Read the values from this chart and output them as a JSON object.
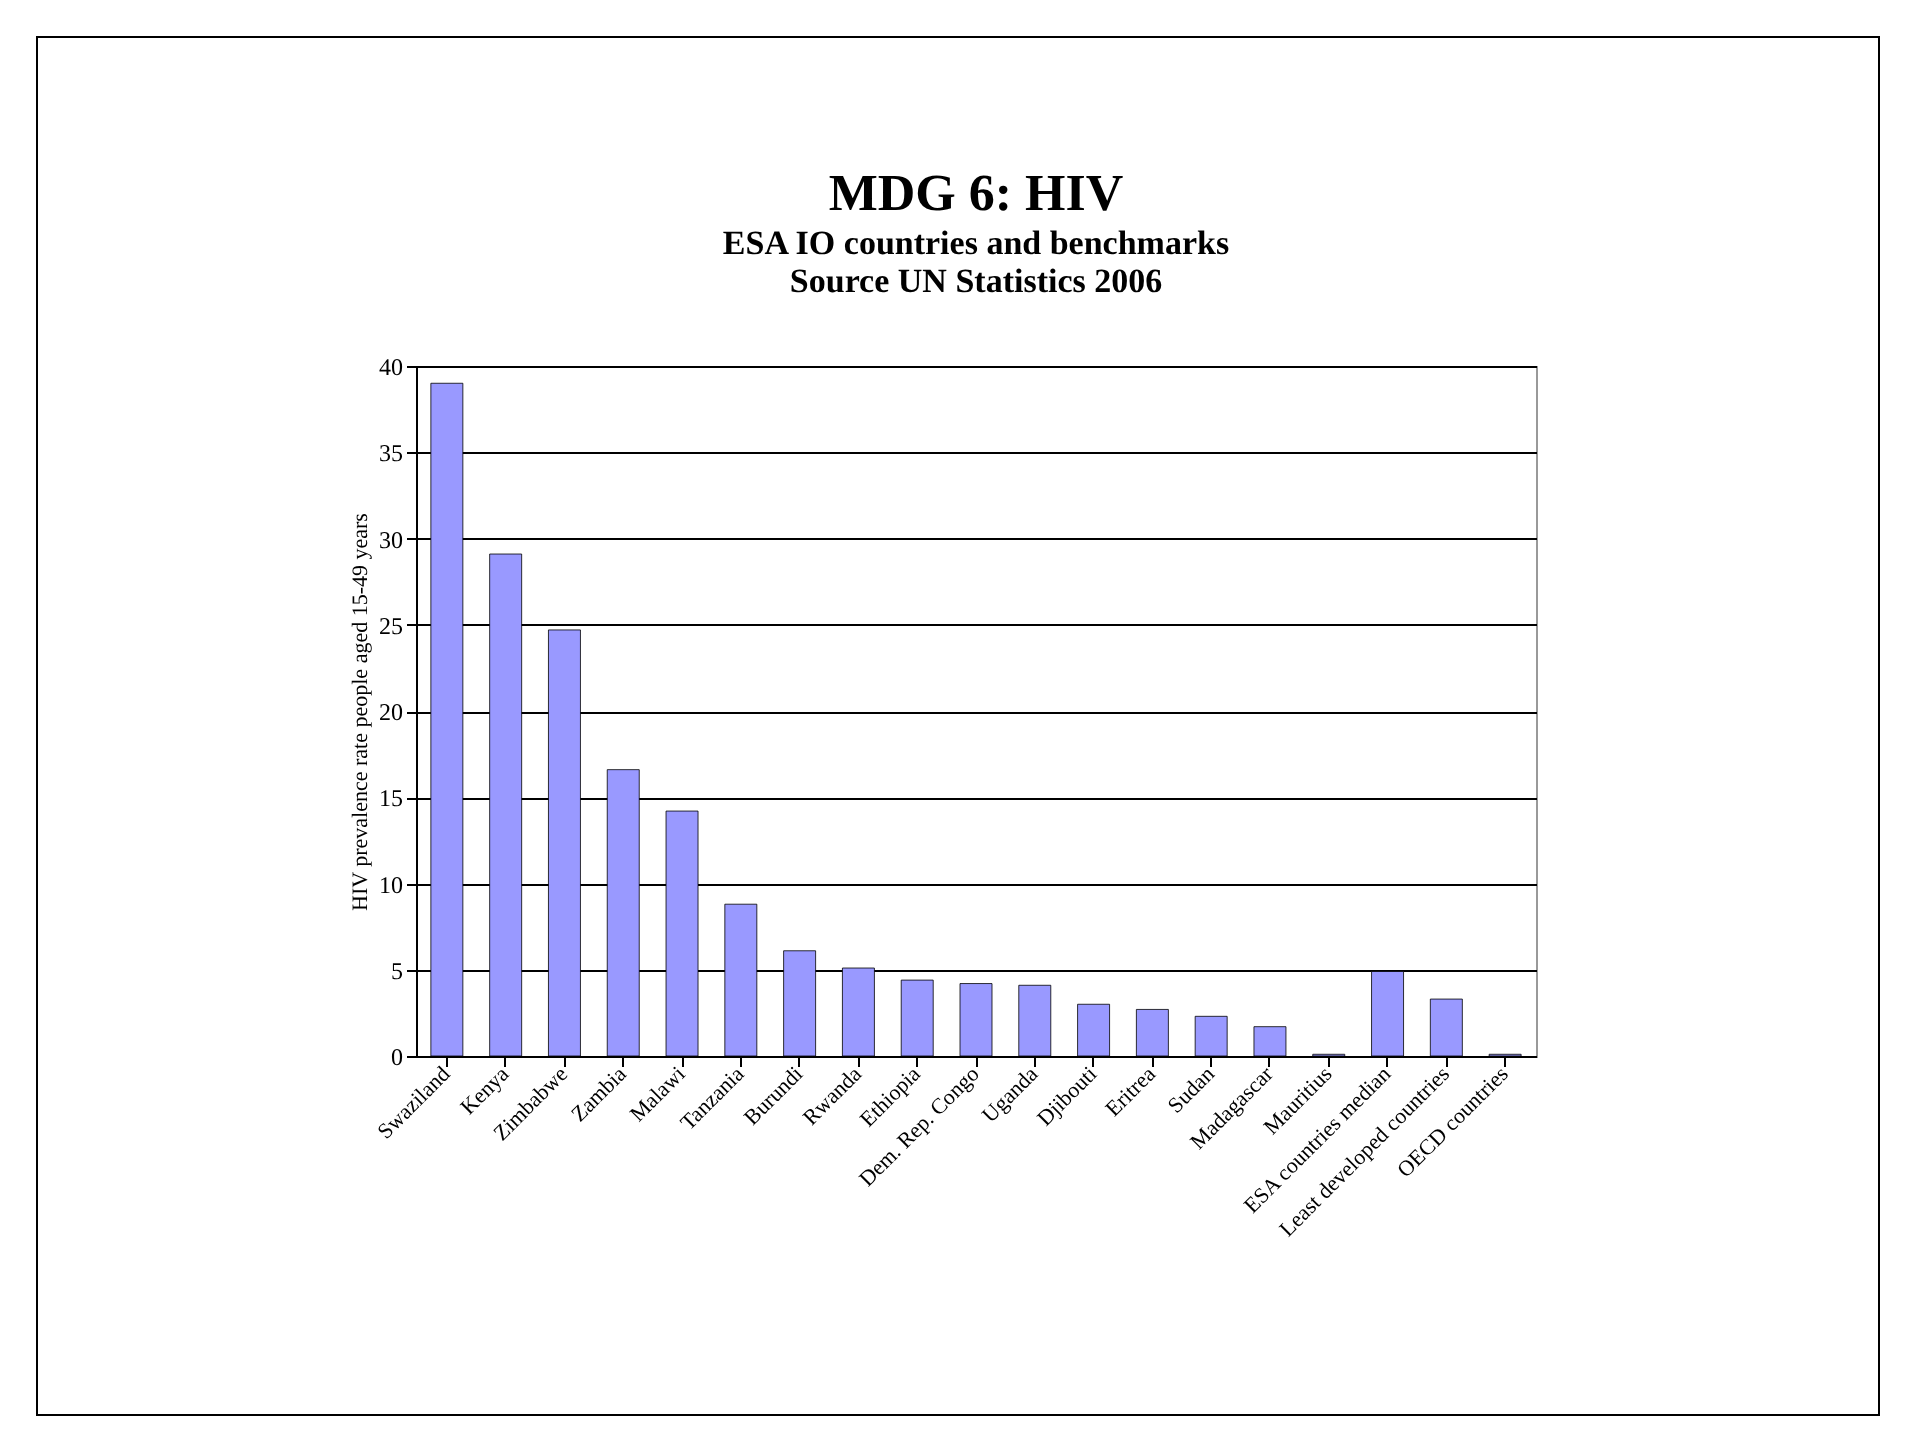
{
  "chart_data": {
    "type": "bar",
    "title": "MDG 6:  HIV",
    "subtitle": "ESA IO countries and benchmarks",
    "annotations": [
      "Source UN Statistics 2006"
    ],
    "ylabel": "HIV prevalence rate people aged 15-49 years",
    "categories": [
      "Swaziland",
      "Kenya",
      "Zimbabwe",
      "Zambia",
      "Malawi",
      "Tanzania",
      "Burundi",
      "Rwanda",
      "Ethiopia",
      "Dem. Rep. Congo",
      "Uganda",
      "Djibouti",
      "Eritrea",
      "Sudan",
      "Madagascar",
      "Mauritius",
      "ESA countries median",
      "Least developed countries",
      "OECD countries"
    ],
    "values": [
      39.0,
      29.1,
      24.7,
      16.6,
      14.2,
      8.8,
      6.1,
      5.1,
      4.4,
      4.2,
      4.1,
      3.0,
      2.7,
      2.3,
      1.7,
      0.1,
      4.9,
      3.3,
      0.1
    ],
    "color": "#9999ff",
    "ylim": [
      0,
      40
    ],
    "yticks": [
      0,
      5,
      10,
      15,
      20,
      25,
      30,
      35,
      40
    ],
    "grid": "y"
  }
}
